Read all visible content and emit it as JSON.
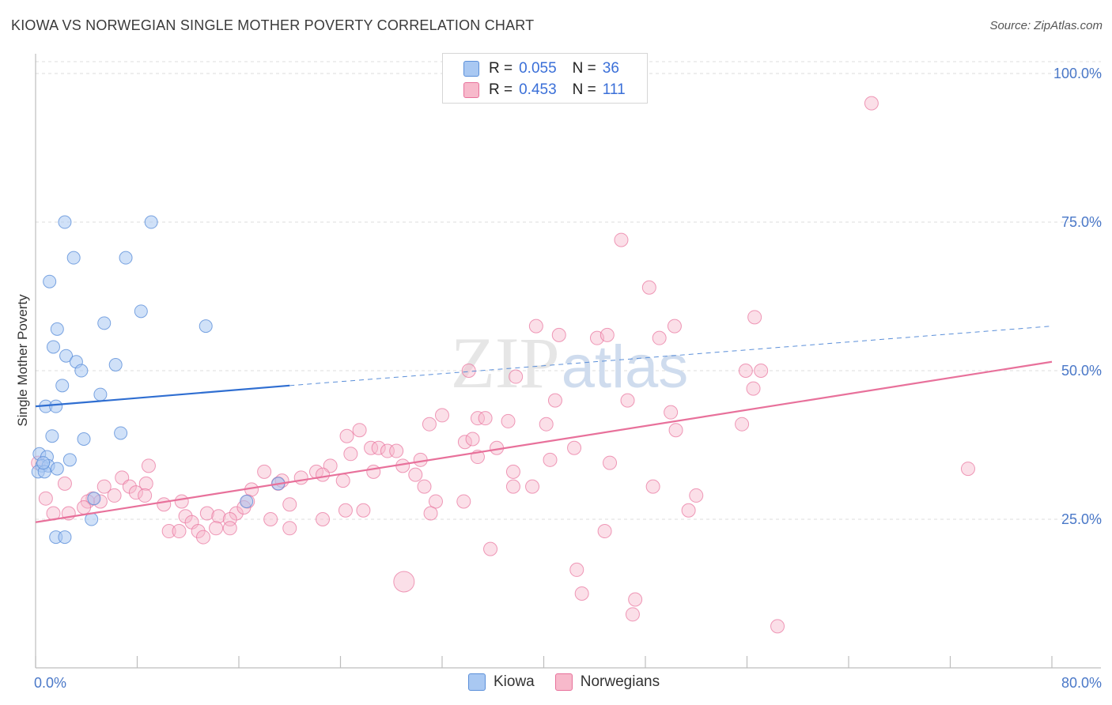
{
  "header": {
    "title": "KIOWA VS NORWEGIAN SINGLE MOTHER POVERTY CORRELATION CHART",
    "source": "Source: ZipAtlas.com"
  },
  "watermark": "ZIPatlas",
  "legend_top": {
    "rows": [
      {
        "r_label": "R =",
        "r_value": "0.055",
        "n_label": "N =",
        "n_value": "36",
        "color": "#a9c8f2"
      },
      {
        "r_label": "R =",
        "r_value": "0.453",
        "n_label": "N =",
        "n_value": "111",
        "color": "#f7b9cb"
      }
    ]
  },
  "legend_bottom": {
    "items": [
      {
        "label": "Kiowa",
        "color": "#a9c8f2"
      },
      {
        "label": "Norwegians",
        "color": "#f7b9cb"
      }
    ]
  },
  "chart_data": {
    "type": "scatter",
    "title": "KIOWA VS NORWEGIAN SINGLE MOTHER POVERTY CORRELATION CHART",
    "ylabel": "Single Mother Poverty",
    "xlabel": "",
    "xlim": [
      0,
      80
    ],
    "ylim": [
      0,
      102
    ],
    "x_tick_labels": [
      "0.0%",
      "80.0%"
    ],
    "y_ticks": [
      25,
      50,
      75,
      100
    ],
    "y_tick_labels": [
      "25.0%",
      "50.0%",
      "75.0%",
      "100.0%"
    ],
    "grid": true,
    "legend_position": "top-center",
    "series": [
      {
        "name": "Kiowa",
        "color": "#5b8fd9",
        "fill": "#a9c8f2",
        "r": "0.055",
        "n": "36",
        "trend": {
          "x": [
            0,
            20
          ],
          "y": [
            44,
            47.5
          ],
          "dashed_to": [
            80,
            57.5
          ]
        },
        "points": [
          [
            2.3,
            75
          ],
          [
            9.1,
            75
          ],
          [
            3.0,
            69
          ],
          [
            7.1,
            69
          ],
          [
            1.1,
            65
          ],
          [
            8.3,
            60
          ],
          [
            1.7,
            57
          ],
          [
            5.4,
            58
          ],
          [
            13.4,
            57.5
          ],
          [
            1.4,
            54
          ],
          [
            2.4,
            52.5
          ],
          [
            3.2,
            51.5
          ],
          [
            6.3,
            51
          ],
          [
            3.6,
            50
          ],
          [
            2.1,
            47.5
          ],
          [
            5.1,
            46
          ],
          [
            0.8,
            44
          ],
          [
            1.6,
            44
          ],
          [
            1.3,
            39
          ],
          [
            3.8,
            38.5
          ],
          [
            6.7,
            39.5
          ],
          [
            0.3,
            36
          ],
          [
            0.9,
            35.5
          ],
          [
            2.7,
            35
          ],
          [
            0.5,
            34
          ],
          [
            1.0,
            34
          ],
          [
            1.7,
            33.5
          ],
          [
            0.2,
            33
          ],
          [
            0.7,
            33
          ],
          [
            4.6,
            28.5
          ],
          [
            16.6,
            28
          ],
          [
            19.1,
            31
          ],
          [
            4.4,
            25
          ],
          [
            1.6,
            22
          ],
          [
            2.3,
            22
          ],
          [
            0.6,
            34.5
          ]
        ]
      },
      {
        "name": "Norwegians",
        "color": "#e8719b",
        "fill": "#f7b9cb",
        "r": "0.453",
        "n": "111",
        "trend": {
          "x": [
            0,
            80
          ],
          "y": [
            24.5,
            51.5
          ]
        },
        "points": [
          [
            65.8,
            95
          ],
          [
            46.1,
            72
          ],
          [
            48.3,
            64
          ],
          [
            50.3,
            57.5
          ],
          [
            56.6,
            59
          ],
          [
            39.4,
            57.5
          ],
          [
            41.2,
            56
          ],
          [
            44.2,
            55.5
          ],
          [
            45.0,
            56
          ],
          [
            49.1,
            55.5
          ],
          [
            34.1,
            50
          ],
          [
            37.8,
            49
          ],
          [
            55.9,
            50
          ],
          [
            57.1,
            50
          ],
          [
            40.9,
            45
          ],
          [
            46.6,
            45
          ],
          [
            56.5,
            47
          ],
          [
            50.0,
            43
          ],
          [
            32.0,
            42.5
          ],
          [
            34.8,
            42
          ],
          [
            35.4,
            42
          ],
          [
            31.0,
            41
          ],
          [
            37.2,
            41.5
          ],
          [
            40.2,
            41
          ],
          [
            55.6,
            41
          ],
          [
            50.4,
            40
          ],
          [
            24.5,
            39
          ],
          [
            25.5,
            40
          ],
          [
            33.8,
            38
          ],
          [
            34.4,
            38.5
          ],
          [
            42.4,
            37
          ],
          [
            26.4,
            37
          ],
          [
            27.0,
            37
          ],
          [
            24.8,
            36
          ],
          [
            27.7,
            36.5
          ],
          [
            28.4,
            36.5
          ],
          [
            30.3,
            35
          ],
          [
            34.8,
            35.5
          ],
          [
            36.3,
            37
          ],
          [
            40.5,
            35
          ],
          [
            45.2,
            34.5
          ],
          [
            73.4,
            33.5
          ],
          [
            18.0,
            33
          ],
          [
            22.1,
            33
          ],
          [
            23.2,
            34
          ],
          [
            26.6,
            33
          ],
          [
            28.9,
            34
          ],
          [
            22.6,
            32.5
          ],
          [
            37.6,
            33
          ],
          [
            8.9,
            34
          ],
          [
            29.9,
            32.5
          ],
          [
            6.8,
            32
          ],
          [
            20.9,
            32
          ],
          [
            24.2,
            31.5
          ],
          [
            39.1,
            30.5
          ],
          [
            5.4,
            30.5
          ],
          [
            7.4,
            30.5
          ],
          [
            8.7,
            31
          ],
          [
            17.0,
            30
          ],
          [
            19.1,
            31
          ],
          [
            30.6,
            30.5
          ],
          [
            37.6,
            30.5
          ],
          [
            48.6,
            30.5
          ],
          [
            2.3,
            31
          ],
          [
            4.5,
            28.5
          ],
          [
            6.2,
            29
          ],
          [
            7.9,
            29.5
          ],
          [
            8.6,
            29
          ],
          [
            10.1,
            27.5
          ],
          [
            11.5,
            28
          ],
          [
            19.4,
            31.5
          ],
          [
            31.5,
            28
          ],
          [
            33.7,
            28
          ],
          [
            16.7,
            28
          ],
          [
            20.0,
            27.5
          ],
          [
            52.0,
            29
          ],
          [
            24.4,
            26.5
          ],
          [
            25.8,
            26.5
          ],
          [
            5.1,
            28
          ],
          [
            4.1,
            28
          ],
          [
            3.8,
            27
          ],
          [
            2.6,
            26
          ],
          [
            13.5,
            26
          ],
          [
            15.8,
            26
          ],
          [
            16.4,
            27
          ],
          [
            31.1,
            26
          ],
          [
            51.4,
            26.5
          ],
          [
            1.4,
            26
          ],
          [
            0.8,
            28.5
          ],
          [
            11.8,
            25.5
          ],
          [
            14.4,
            25.5
          ],
          [
            15.3,
            25
          ],
          [
            18.5,
            25
          ],
          [
            22.6,
            25
          ],
          [
            12.3,
            24.5
          ],
          [
            10.5,
            23
          ],
          [
            12.8,
            23
          ],
          [
            14.2,
            23.5
          ],
          [
            15.3,
            23.5
          ],
          [
            11.3,
            23
          ],
          [
            13.2,
            22
          ],
          [
            20.0,
            23.5
          ],
          [
            44.8,
            23
          ],
          [
            35.8,
            20
          ],
          [
            42.6,
            16.5
          ],
          [
            43.0,
            12.5
          ],
          [
            47.2,
            11.5
          ],
          [
            47.0,
            9
          ],
          [
            29.0,
            14.5
          ],
          [
            58.4,
            7
          ],
          [
            0.2,
            34.5
          ]
        ]
      }
    ]
  }
}
